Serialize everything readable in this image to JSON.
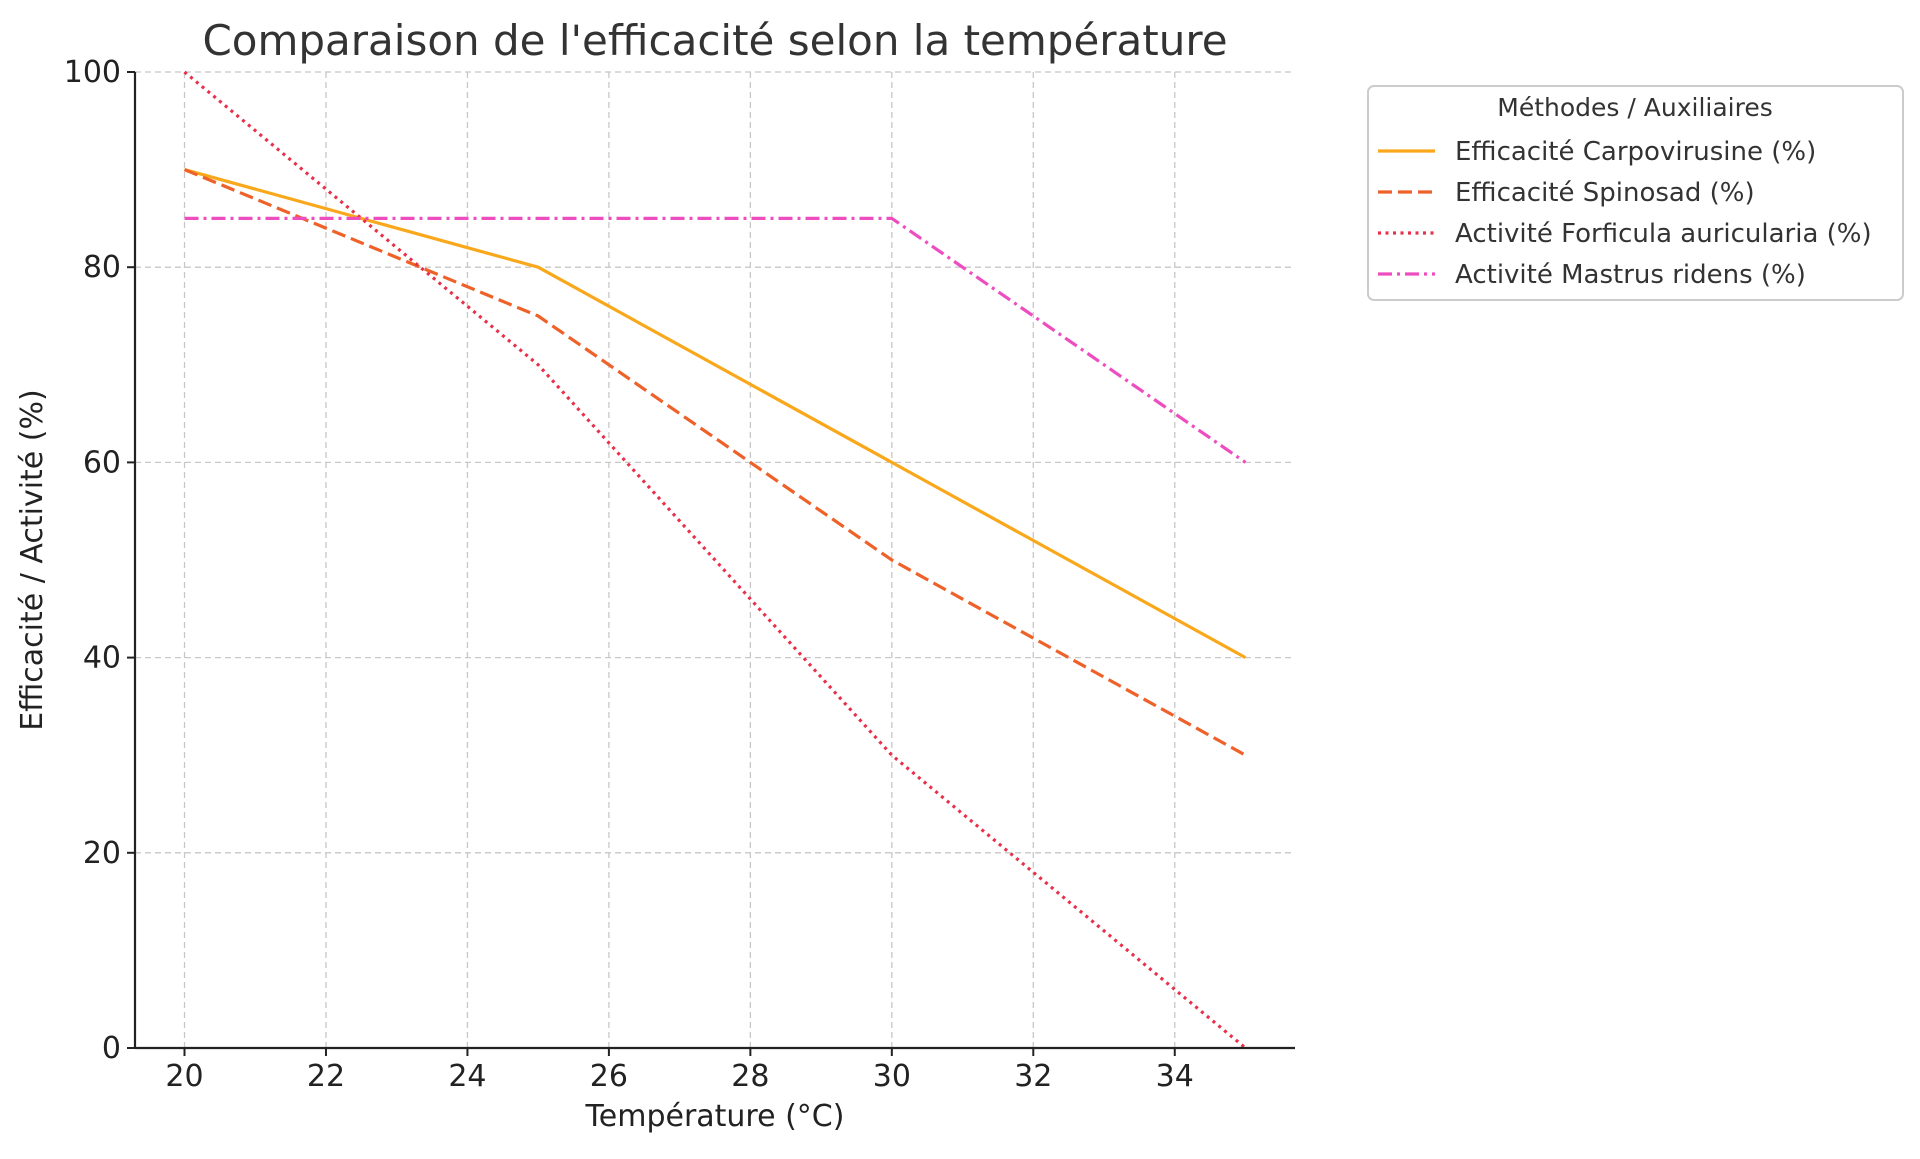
{
  "chart_data": {
    "type": "line",
    "title": "Comparaison de l'efficacité selon la température",
    "xlabel": "Température (°C)",
    "ylabel": "Efficacité / Activité (%)",
    "xlim": [
      19.3,
      35.7
    ],
    "ylim": [
      0,
      100
    ],
    "xticks": [
      20,
      22,
      24,
      26,
      28,
      30,
      32,
      34
    ],
    "yticks": [
      0,
      20,
      40,
      60,
      80,
      100
    ],
    "grid": true,
    "legend": {
      "title": "Méthodes / Auxiliaires",
      "placement": "outside upper right"
    },
    "x": [
      20,
      25,
      30,
      35
    ],
    "series": [
      {
        "name": "Efficacité Carpovirusine (%)",
        "values": [
          90,
          80,
          60,
          40
        ],
        "color": "#F9A81B",
        "dash": "solid"
      },
      {
        "name": "Efficacité Spinosad (%)",
        "values": [
          90,
          75,
          50,
          30
        ],
        "color": "#EE6129",
        "dash": "dashed"
      },
      {
        "name": "Activité Forficula auricularia (%)",
        "values": [
          100,
          70,
          30,
          0
        ],
        "color": "#E8304A",
        "dash": "dotted"
      },
      {
        "name": "Activité Mastrus ridens (%)",
        "values": [
          85,
          85,
          85,
          60
        ],
        "color": "#EE4DC0",
        "dash": "dashdot"
      }
    ]
  }
}
